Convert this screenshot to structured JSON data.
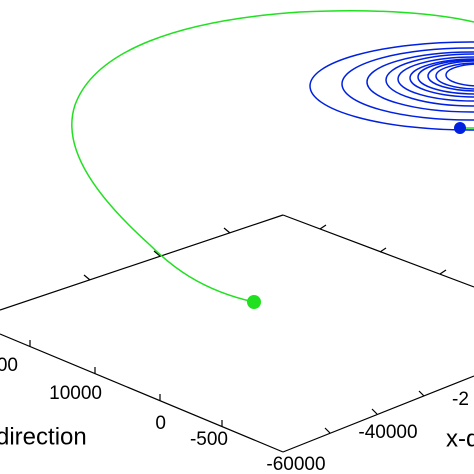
{
  "figure": {
    "tick_labels": [
      {
        "text": "000"
      },
      {
        "text": "10000"
      },
      {
        "text": "0"
      },
      {
        "text": "-500"
      },
      {
        "text": "-60000"
      },
      {
        "text": "-40000"
      },
      {
        "text": "-2"
      }
    ],
    "axis_labels": [
      "direction",
      "x-d"
    ]
  }
}
